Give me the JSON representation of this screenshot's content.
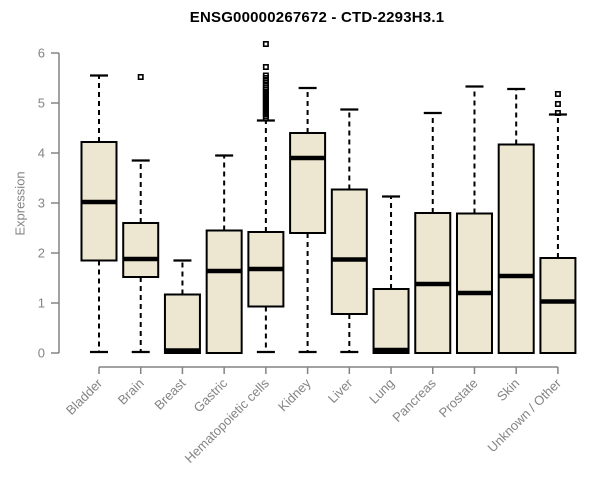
{
  "colors": {
    "background": "#ffffff",
    "box_fill": "#ede7d1",
    "box_stroke": "#000000",
    "median_stroke": "#000000",
    "whisker_stroke": "#000000",
    "outlier_stroke": "#000000",
    "axis_line": "#848484",
    "axis_text": "#848484",
    "title_color": "#000000"
  },
  "chart_data": {
    "type": "boxplot",
    "title": "ENSG00000267672 - CTD-2293H3.1",
    "ylabel": "Expression",
    "xlabel": "",
    "ylim": [
      0,
      6.3
    ],
    "yticks": [
      0,
      1,
      2,
      3,
      4,
      5,
      6
    ],
    "grid": false,
    "legend": "none",
    "categories": [
      "Bladder",
      "Brain",
      "Breast",
      "Gastric",
      "Hematopoietic cells",
      "Kidney",
      "Liver",
      "Lung",
      "Pancreas",
      "Prostate",
      "Skin",
      "Unknown / Other"
    ],
    "series": [
      {
        "name": "Bladder",
        "low": 0.02,
        "q1": 1.85,
        "median": 3.02,
        "q3": 4.22,
        "high": 5.55,
        "outliers": []
      },
      {
        "name": "Brain",
        "low": 0.02,
        "q1": 1.52,
        "median": 1.88,
        "q3": 2.6,
        "high": 3.85,
        "outliers": [
          5.52
        ]
      },
      {
        "name": "Breast",
        "low": 0.0,
        "q1": 0.0,
        "median": 0.05,
        "q3": 1.17,
        "high": 1.85,
        "outliers": []
      },
      {
        "name": "Gastric",
        "low": 0.0,
        "q1": 0.0,
        "median": 1.64,
        "q3": 2.45,
        "high": 3.95,
        "outliers": []
      },
      {
        "name": "Hematopoietic cells",
        "low": 0.02,
        "q1": 0.93,
        "median": 1.68,
        "q3": 2.42,
        "high": 4.65,
        "outliers": [
          4.7,
          4.74,
          4.78,
          4.82,
          4.86,
          4.9,
          4.94,
          4.98,
          5.02,
          5.06,
          5.1,
          5.14,
          5.18,
          5.22,
          5.26,
          5.3,
          5.35,
          5.4,
          5.45,
          5.5,
          5.55,
          5.72,
          6.18
        ]
      },
      {
        "name": "Kidney",
        "low": 0.02,
        "q1": 2.4,
        "median": 3.9,
        "q3": 4.4,
        "high": 5.3,
        "outliers": []
      },
      {
        "name": "Liver",
        "low": 0.02,
        "q1": 0.78,
        "median": 1.87,
        "q3": 3.27,
        "high": 4.87,
        "outliers": []
      },
      {
        "name": "Lung",
        "low": 0.0,
        "q1": 0.0,
        "median": 0.06,
        "q3": 1.28,
        "high": 3.13,
        "outliers": []
      },
      {
        "name": "Pancreas",
        "low": 0.0,
        "q1": 0.0,
        "median": 1.38,
        "q3": 2.8,
        "high": 4.8,
        "outliers": []
      },
      {
        "name": "Prostate",
        "low": 0.0,
        "q1": 0.0,
        "median": 1.2,
        "q3": 2.79,
        "high": 5.33,
        "outliers": []
      },
      {
        "name": "Skin",
        "low": 0.0,
        "q1": 0.0,
        "median": 1.54,
        "q3": 4.17,
        "high": 5.28,
        "outliers": []
      },
      {
        "name": "Unknown / Other",
        "low": 0.0,
        "q1": 0.0,
        "median": 1.03,
        "q3": 1.9,
        "high": 4.77,
        "outliers": [
          4.8,
          4.98,
          5.18
        ]
      }
    ]
  }
}
